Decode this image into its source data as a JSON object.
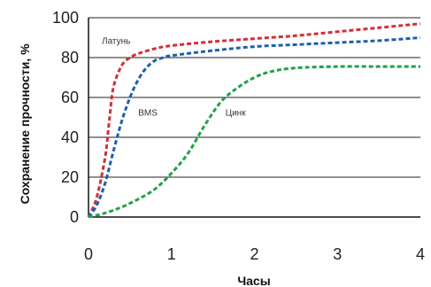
{
  "chart_data": {
    "type": "line",
    "xlabel": "Часы",
    "ylabel": "Сохранение прочности, %",
    "xlim": [
      0,
      4
    ],
    "ylim": [
      0,
      100
    ],
    "xticks": [
      "0",
      "1",
      "2",
      "3",
      "4"
    ],
    "yticks": [
      "0",
      "20",
      "40",
      "60",
      "80",
      "100"
    ],
    "grid": "horizontal",
    "line_style": "dashed",
    "series": [
      {
        "name": "Латунь",
        "color": "#d32f3a",
        "x": [
          0,
          0.1,
          0.2,
          0.25,
          0.3,
          0.4,
          0.5,
          0.6,
          0.8,
          1.0,
          1.5,
          2.0,
          2.5,
          3.0,
          3.5,
          4.0
        ],
        "y": [
          0,
          10,
          30,
          48,
          65,
          76,
          80,
          82,
          84.5,
          86,
          88,
          89.5,
          91,
          93,
          95,
          97
        ]
      },
      {
        "name": "BMS",
        "color": "#1f5fad",
        "x": [
          0,
          0.1,
          0.2,
          0.3,
          0.4,
          0.5,
          0.6,
          0.7,
          0.8,
          0.9,
          1.0,
          1.5,
          2.0,
          2.5,
          3.0,
          3.5,
          4.0
        ],
        "y": [
          0,
          6,
          17,
          33,
          48,
          60,
          69,
          75,
          78.5,
          80,
          81,
          83.5,
          85.5,
          86.5,
          87.5,
          88.5,
          90
        ]
      },
      {
        "name": "Цинк",
        "color": "#21a14a",
        "x": [
          0,
          0.2,
          0.4,
          0.6,
          0.8,
          1.0,
          1.2,
          1.4,
          1.6,
          1.8,
          2.0,
          2.2,
          2.5,
          3.0,
          3.5,
          4.0
        ],
        "y": [
          0,
          2,
          5,
          9,
          14,
          22,
          32,
          46,
          58,
          65,
          70,
          73,
          74.8,
          75.5,
          75.5,
          75.5
        ]
      }
    ],
    "labels": [
      {
        "text": "Латунь",
        "series": "Латунь",
        "x": 0.16,
        "y": 87
      },
      {
        "text": "BMS",
        "series": "BMS",
        "x": 0.6,
        "y": 51
      },
      {
        "text": "Цинк",
        "series": "Цинк",
        "x": 1.65,
        "y": 51
      }
    ]
  }
}
